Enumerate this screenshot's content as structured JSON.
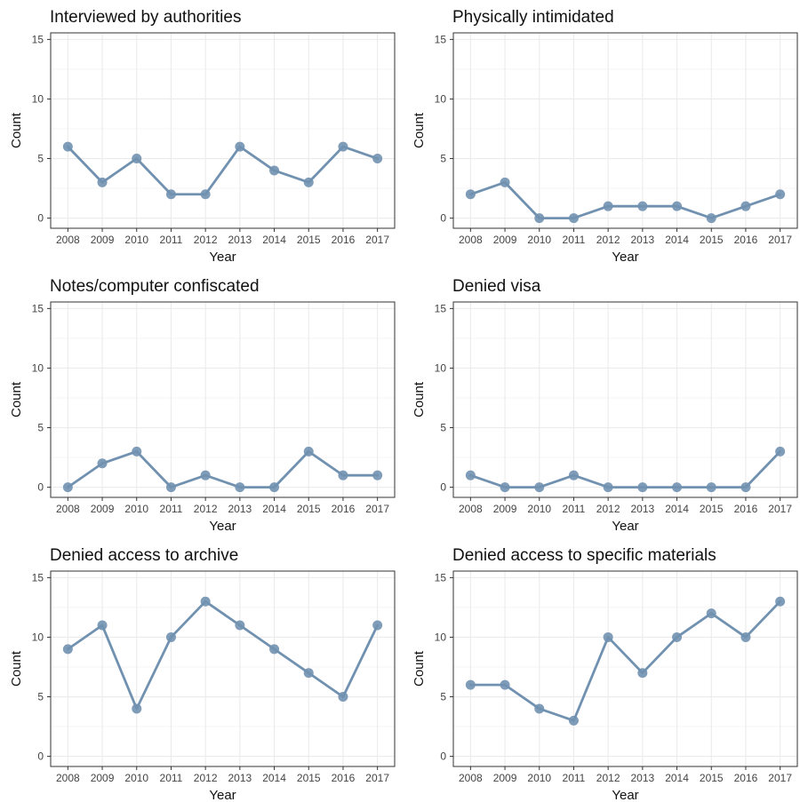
{
  "chart_data": [
    {
      "type": "line",
      "title": "Interviewed by authorities",
      "xlabel": "Year",
      "ylabel": "Count",
      "x": [
        2008,
        2009,
        2010,
        2011,
        2012,
        2013,
        2014,
        2015,
        2016,
        2017
      ],
      "values": [
        6,
        3,
        5,
        2,
        2,
        6,
        4,
        3,
        6,
        5
      ],
      "ylim": [
        0,
        15
      ],
      "yticks": [
        0,
        5,
        10,
        15
      ],
      "grid": true
    },
    {
      "type": "line",
      "title": "Physically intimidated",
      "xlabel": "Year",
      "ylabel": "Count",
      "x": [
        2008,
        2009,
        2010,
        2011,
        2012,
        2013,
        2014,
        2015,
        2016,
        2017
      ],
      "values": [
        2,
        3,
        0,
        0,
        1,
        1,
        1,
        0,
        1,
        2
      ],
      "ylim": [
        0,
        15
      ],
      "yticks": [
        0,
        5,
        10,
        15
      ],
      "grid": true
    },
    {
      "type": "line",
      "title": "Notes/computer confiscated",
      "xlabel": "Year",
      "ylabel": "Count",
      "x": [
        2008,
        2009,
        2010,
        2011,
        2012,
        2013,
        2014,
        2015,
        2016,
        2017
      ],
      "values": [
        0,
        2,
        3,
        0,
        1,
        0,
        0,
        3,
        1,
        1
      ],
      "ylim": [
        0,
        15
      ],
      "yticks": [
        0,
        5,
        10,
        15
      ],
      "grid": true
    },
    {
      "type": "line",
      "title": "Denied visa",
      "xlabel": "Year",
      "ylabel": "Count",
      "x": [
        2008,
        2009,
        2010,
        2011,
        2012,
        2013,
        2014,
        2015,
        2016,
        2017
      ],
      "values": [
        1,
        0,
        0,
        1,
        0,
        0,
        0,
        0,
        0,
        3
      ],
      "ylim": [
        0,
        15
      ],
      "yticks": [
        0,
        5,
        10,
        15
      ],
      "grid": true
    },
    {
      "type": "line",
      "title": "Denied access to archive",
      "xlabel": "Year",
      "ylabel": "Count",
      "x": [
        2008,
        2009,
        2010,
        2011,
        2012,
        2013,
        2014,
        2015,
        2016,
        2017
      ],
      "values": [
        9,
        11,
        4,
        10,
        13,
        11,
        9,
        7,
        5,
        11
      ],
      "ylim": [
        0,
        15
      ],
      "yticks": [
        0,
        5,
        10,
        15
      ],
      "grid": true
    },
    {
      "type": "line",
      "title": "Denied access to specific materials",
      "xlabel": "Year",
      "ylabel": "Count",
      "x": [
        2008,
        2009,
        2010,
        2011,
        2012,
        2013,
        2014,
        2015,
        2016,
        2017
      ],
      "values": [
        6,
        6,
        4,
        3,
        10,
        7,
        10,
        12,
        10,
        13
      ],
      "ylim": [
        0,
        15
      ],
      "yticks": [
        0,
        5,
        10,
        15
      ],
      "grid": true
    }
  ],
  "colors": {
    "series": "#7191b0",
    "panel_border": "#333333",
    "grid_major": "#ebebeb",
    "grid_minor": "#f4f4f4"
  }
}
